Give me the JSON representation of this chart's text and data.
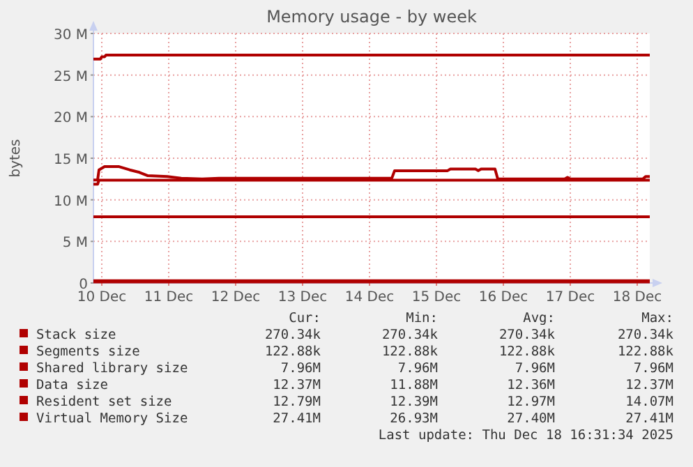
{
  "chart_data": {
    "type": "line",
    "title": "Memory usage - by week",
    "ylabel": "bytes",
    "xlim": [
      "2025-12-10T09:00",
      "2025-12-18T16:30"
    ],
    "xticks": [
      {
        "value": "2025-12-10T12:00",
        "label": "10 Dec"
      },
      {
        "value": "2025-12-11T12:00",
        "label": "11 Dec"
      },
      {
        "value": "2025-12-12T12:00",
        "label": "12 Dec"
      },
      {
        "value": "2025-12-13T12:00",
        "label": "13 Dec"
      },
      {
        "value": "2025-12-14T12:00",
        "label": "14 Dec"
      },
      {
        "value": "2025-12-15T12:00",
        "label": "15 Dec"
      },
      {
        "value": "2025-12-16T12:00",
        "label": "16 Dec"
      },
      {
        "value": "2025-12-17T12:00",
        "label": "17 Dec"
      },
      {
        "value": "2025-12-18T12:00",
        "label": "18 Dec"
      }
    ],
    "ylim": [
      0,
      30
    ],
    "yticks": [
      {
        "value": 0,
        "label": "0"
      },
      {
        "value": 5,
        "label": "5 M"
      },
      {
        "value": 10,
        "label": "10 M"
      },
      {
        "value": 15,
        "label": "15 M"
      },
      {
        "value": 20,
        "label": "20 M"
      },
      {
        "value": 25,
        "label": "25 M"
      },
      {
        "value": 30,
        "label": "30 M"
      }
    ],
    "grid": true,
    "legend": "bottom",
    "line_style": "solid",
    "marker": "none",
    "series": [
      {
        "name": "Stack size",
        "color": "#b00000",
        "x": [
          "2025-12-10T09:00",
          "2025-12-18T16:30"
        ],
        "values": [
          0.27,
          0.27
        ]
      },
      {
        "name": "Segments size",
        "color": "#b00000",
        "x": [
          "2025-12-10T09:00",
          "2025-12-18T16:30"
        ],
        "values": [
          0.12,
          0.12
        ]
      },
      {
        "name": "Shared library size",
        "color": "#b00000",
        "x": [
          "2025-12-10T09:00",
          "2025-12-18T16:30"
        ],
        "values": [
          7.96,
          7.96
        ]
      },
      {
        "name": "Data size",
        "color": "#b00000",
        "x": [
          "2025-12-10T09:00",
          "2025-12-10T10:30",
          "2025-12-10T11:00",
          "2025-12-18T16:30"
        ],
        "values": [
          11.88,
          11.88,
          12.37,
          12.37
        ]
      },
      {
        "name": "Resident set size",
        "color": "#b00000",
        "x": [
          "2025-12-10T09:00",
          "2025-12-10T10:30",
          "2025-12-10T11:00",
          "2025-12-10T13:00",
          "2025-12-10T18:00",
          "2025-12-10T22:00",
          "2025-12-11T01:30",
          "2025-12-11T04:30",
          "2025-12-11T11:30",
          "2025-12-11T16:30",
          "2025-12-12T00:00",
          "2025-12-12T06:00",
          "2025-12-14T20:00",
          "2025-12-14T21:00",
          "2025-12-15T16:00",
          "2025-12-15T17:00",
          "2025-12-16T02:00",
          "2025-12-16T03:00",
          "2025-12-16T04:00",
          "2025-12-16T09:00",
          "2025-12-16T10:00",
          "2025-12-17T10:00",
          "2025-12-17T11:00",
          "2025-12-17T12:00",
          "2025-12-18T14:00",
          "2025-12-18T15:00",
          "2025-12-18T16:30"
        ],
        "values": [
          12.39,
          12.39,
          13.6,
          14.0,
          14.0,
          13.6,
          13.3,
          12.9,
          12.8,
          12.6,
          12.5,
          12.6,
          12.6,
          13.5,
          13.5,
          13.7,
          13.7,
          13.5,
          13.7,
          13.7,
          12.5,
          12.5,
          12.7,
          12.5,
          12.5,
          12.79,
          12.79
        ]
      },
      {
        "name": "Virtual Memory Size",
        "color": "#b00000",
        "x": [
          "2025-12-10T09:00",
          "2025-12-10T11:30",
          "2025-12-10T12:00",
          "2025-12-10T13:00",
          "2025-12-10T13:30",
          "2025-12-18T16:30"
        ],
        "values": [
          26.93,
          26.93,
          27.2,
          27.2,
          27.41,
          27.41
        ]
      }
    ],
    "annotations": [
      "Cur:",
      "Min:",
      "Avg:",
      "Max:",
      "270.34k",
      "270.34k",
      "270.34k",
      "270.34k",
      "122.88k",
      "122.88k",
      "122.88k",
      "122.88k",
      "7.96M",
      "7.96M",
      "7.96M",
      "7.96M",
      "12.37M",
      "11.88M",
      "12.36M",
      "12.37M",
      "12.79M",
      "12.39M",
      "12.97M",
      "14.07M",
      "27.41M",
      "26.93M",
      "27.40M",
      "27.41M",
      "Last update: Thu Dec 18 16:31:34 2025"
    ]
  }
}
